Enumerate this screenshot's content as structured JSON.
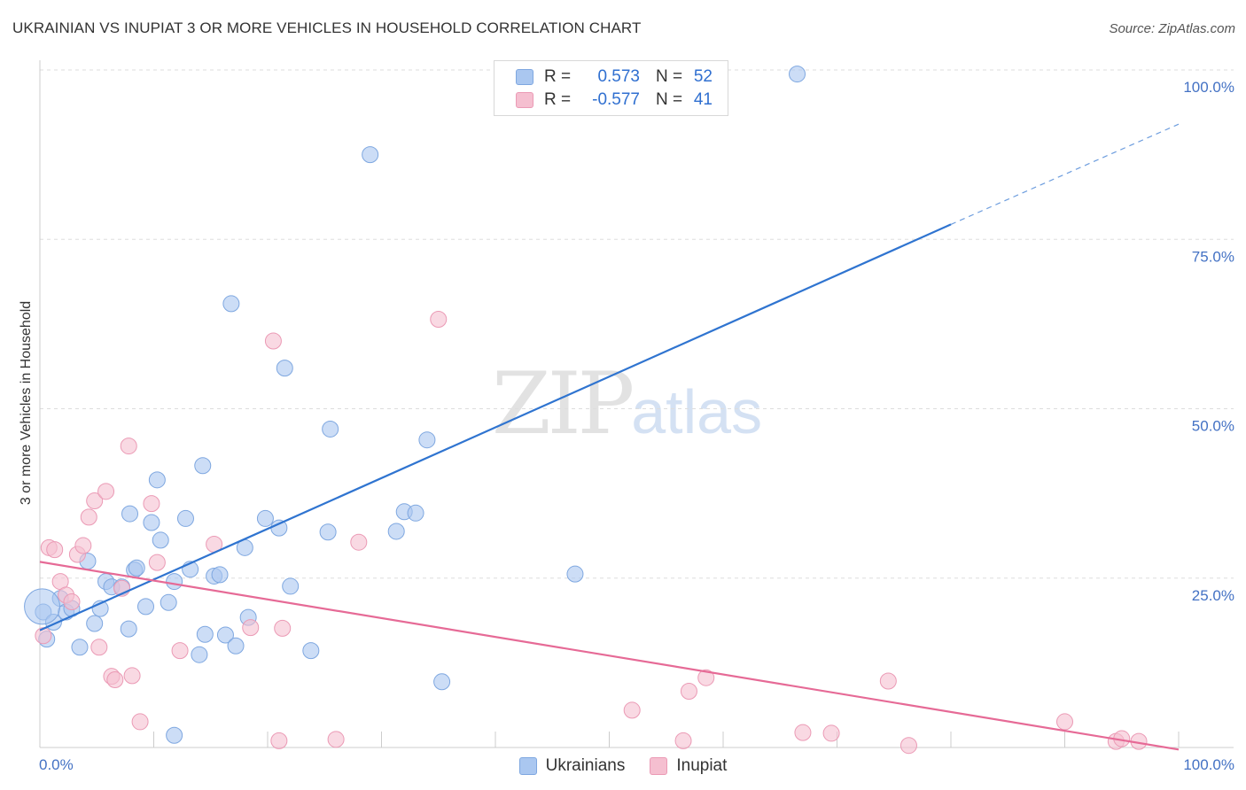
{
  "title": "UKRAINIAN VS INUPIAT 3 OR MORE VEHICLES IN HOUSEHOLD CORRELATION CHART",
  "source": "Source: ZipAtlas.com",
  "watermark": {
    "zip": "ZIP",
    "atlas": "atlas"
  },
  "legend": {
    "rows": [
      {
        "r_label": "R =",
        "r_value": "0.573",
        "n_label": "N =",
        "n_value": "52",
        "color": "#aac7f0"
      },
      {
        "r_label": "R =",
        "r_value": "-0.577",
        "n_label": "N =",
        "n_value": "41",
        "color": "#f5bfd0"
      }
    ]
  },
  "bottom_legend": [
    {
      "label": "Ukrainians",
      "color": "#aac7f0"
    },
    {
      "label": "Inupiat",
      "color": "#f5bfd0"
    }
  ],
  "chart_data": {
    "type": "scatter",
    "title": "UKRAINIAN VS INUPIAT 3 OR MORE VEHICLES IN HOUSEHOLD CORRELATION CHART",
    "ylabel": "3 or more Vehicles in Household",
    "xlabel": "",
    "xlim": [
      0,
      100
    ],
    "ylim": [
      0,
      100
    ],
    "x_tick_labels": [
      "0.0%",
      "100.0%"
    ],
    "y_ticks": [
      25,
      50,
      75,
      100
    ],
    "y_tick_labels": [
      "25.0%",
      "50.0%",
      "75.0%",
      "100.0%"
    ],
    "grid": true,
    "series": [
      {
        "name": "Ukrainians",
        "color": "#aac7f0",
        "stroke": "#7ea7e0",
        "line_color": "#2f74d0",
        "trend": {
          "x0": 0,
          "y0": 17.3,
          "x1": 80,
          "y1": 77.2,
          "dash_to_x": 100,
          "dash_to_y": 92.0
        },
        "points": [
          [
            0.3,
            20.0
          ],
          [
            0.6,
            16.0
          ],
          [
            1.2,
            18.5
          ],
          [
            1.8,
            22.0
          ],
          [
            2.3,
            20.0
          ],
          [
            2.8,
            20.5
          ],
          [
            3.5,
            14.8
          ],
          [
            4.2,
            27.5
          ],
          [
            4.8,
            18.3
          ],
          [
            5.3,
            20.5
          ],
          [
            5.8,
            24.5
          ],
          [
            6.3,
            23.7
          ],
          [
            7.2,
            23.7
          ],
          [
            7.8,
            17.5
          ],
          [
            7.9,
            34.5
          ],
          [
            8.3,
            26.2
          ],
          [
            8.5,
            26.5
          ],
          [
            9.3,
            20.8
          ],
          [
            9.8,
            33.2
          ],
          [
            10.3,
            39.5
          ],
          [
            10.6,
            30.6
          ],
          [
            11.3,
            21.4
          ],
          [
            11.8,
            24.5
          ],
          [
            12.8,
            33.8
          ],
          [
            13.2,
            26.3
          ],
          [
            14.0,
            13.7
          ],
          [
            14.3,
            41.6
          ],
          [
            14.5,
            16.7
          ],
          [
            15.3,
            25.3
          ],
          [
            15.8,
            25.5
          ],
          [
            16.3,
            16.6
          ],
          [
            16.8,
            65.5
          ],
          [
            17.2,
            15.0
          ],
          [
            18.0,
            29.5
          ],
          [
            18.3,
            19.2
          ],
          [
            19.8,
            33.8
          ],
          [
            21.0,
            32.4
          ],
          [
            21.5,
            56.0
          ],
          [
            22.0,
            23.8
          ],
          [
            23.8,
            14.3
          ],
          [
            25.3,
            31.8
          ],
          [
            25.5,
            47.0
          ],
          [
            29.0,
            87.5
          ],
          [
            31.3,
            31.9
          ],
          [
            32.0,
            34.8
          ],
          [
            33.0,
            34.6
          ],
          [
            34.0,
            45.4
          ],
          [
            35.3,
            9.7
          ],
          [
            47.0,
            25.6
          ],
          [
            66.5,
            99.4
          ],
          [
            11.8,
            1.8
          ],
          [
            0.2,
            20.8
          ]
        ]
      },
      {
        "name": "Inupiat",
        "color": "#f5bfd0",
        "stroke": "#eb9ab5",
        "line_color": "#e66a96",
        "trend": {
          "x0": 0,
          "y0": 27.4,
          "x1": 100,
          "y1": -0.3
        },
        "points": [
          [
            0.3,
            16.5
          ],
          [
            0.8,
            29.5
          ],
          [
            1.3,
            29.2
          ],
          [
            1.8,
            24.5
          ],
          [
            2.3,
            22.5
          ],
          [
            2.8,
            21.5
          ],
          [
            3.3,
            28.5
          ],
          [
            3.8,
            29.8
          ],
          [
            4.3,
            34.0
          ],
          [
            4.8,
            36.4
          ],
          [
            5.2,
            14.8
          ],
          [
            5.8,
            37.8
          ],
          [
            6.3,
            10.5
          ],
          [
            6.6,
            10.0
          ],
          [
            7.2,
            23.5
          ],
          [
            7.8,
            44.5
          ],
          [
            8.1,
            10.6
          ],
          [
            8.8,
            3.8
          ],
          [
            9.8,
            36.0
          ],
          [
            10.3,
            27.3
          ],
          [
            12.3,
            14.3
          ],
          [
            15.3,
            30.0
          ],
          [
            18.5,
            17.7
          ],
          [
            20.5,
            60.0
          ],
          [
            21.0,
            1.0
          ],
          [
            21.3,
            17.6
          ],
          [
            26.0,
            1.2
          ],
          [
            28.0,
            30.3
          ],
          [
            35.0,
            63.2
          ],
          [
            52.0,
            5.5
          ],
          [
            56.5,
            1.0
          ],
          [
            57.0,
            8.3
          ],
          [
            58.5,
            10.3
          ],
          [
            67.0,
            2.2
          ],
          [
            69.5,
            2.1
          ],
          [
            76.3,
            0.3
          ],
          [
            74.5,
            9.8
          ],
          [
            90.0,
            3.8
          ],
          [
            94.5,
            0.9
          ],
          [
            95.0,
            1.3
          ],
          [
            96.5,
            0.9
          ]
        ]
      }
    ]
  }
}
